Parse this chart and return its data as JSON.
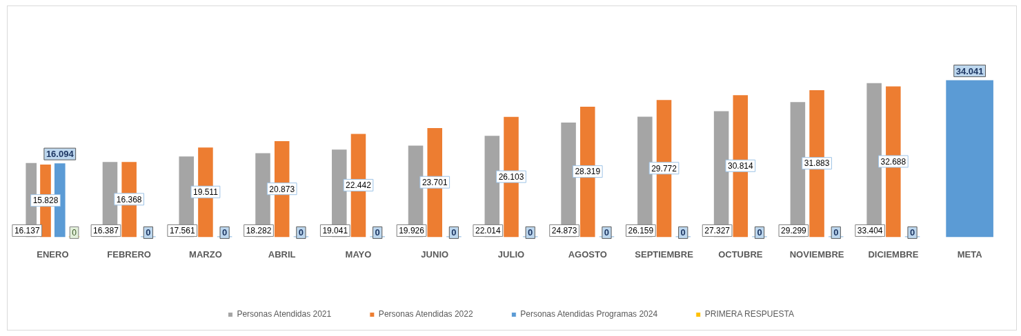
{
  "chart_data": {
    "type": "bar",
    "categories": [
      "ENERO",
      "FEBRERO",
      "MARZO",
      "ABRIL",
      "MAYO",
      "JUNIO",
      "JULIO",
      "AGOSTO",
      "SEPTIEMBRE",
      "OCTUBRE",
      "NOVIEMBRE",
      "DICIEMBRE",
      "META"
    ],
    "series": [
      {
        "name": "Personas Atendidas 2021",
        "color": "#a5a5a5",
        "values": [
          16137,
          16387,
          17561,
          18282,
          19041,
          19926,
          22014,
          24873,
          26159,
          27327,
          29299,
          33404,
          null
        ],
        "value_labels": [
          "16.137",
          "16.387",
          "17.561",
          "18.282",
          "19.041",
          "19.926",
          "22.014",
          "24.873",
          "26.159",
          "27.327",
          "29.299",
          "33.404",
          null
        ]
      },
      {
        "name": "Personas Atendidas 2022",
        "color": "#ed7d31",
        "values": [
          15828,
          16368,
          19511,
          20873,
          22442,
          23701,
          26103,
          28319,
          29772,
          30814,
          31883,
          32688,
          null
        ],
        "value_labels": [
          "15.828",
          "16.368",
          "19.511",
          "20.873",
          "22.442",
          "23.701",
          "26.103",
          "28.319",
          "29.772",
          "30.814",
          "31.883",
          "32.688",
          null
        ]
      },
      {
        "name": "Personas Atendidas Programas 2024",
        "color": "#5b9bd5",
        "values": [
          16094,
          0,
          0,
          0,
          0,
          0,
          0,
          0,
          0,
          0,
          0,
          0,
          34041
        ],
        "value_labels": [
          "16.094",
          "0",
          "0",
          "0",
          "0",
          "0",
          "0",
          "0",
          "0",
          "0",
          "0",
          "0",
          "34.041"
        ]
      },
      {
        "name": "PRIMERA RESPUESTA",
        "color": "#ffc000",
        "values": [
          0,
          null,
          null,
          null,
          null,
          null,
          null,
          null,
          null,
          null,
          null,
          null,
          null
        ],
        "value_labels": [
          "0",
          null,
          null,
          null,
          null,
          null,
          null,
          null,
          null,
          null,
          null,
          null,
          null
        ]
      }
    ],
    "legend": "bottom",
    "grid": false
  }
}
